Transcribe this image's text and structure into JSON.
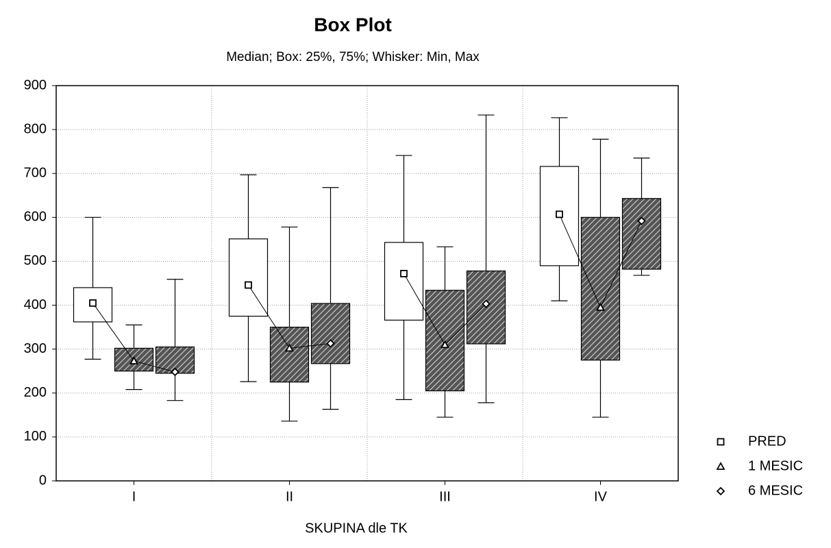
{
  "chart_data": {
    "type": "box",
    "title": "Box Plot",
    "subtitle": "Median; Box: 25%, 75%; Whisker: Min, Max",
    "xlabel": "SKUPINA dle TK",
    "categories": [
      "I",
      "II",
      "III",
      "IV"
    ],
    "ylim": [
      0,
      900
    ],
    "yticks": [
      0,
      100,
      200,
      300,
      400,
      500,
      600,
      700,
      800,
      900
    ],
    "grid": true,
    "legend": "bottom-right",
    "connect_medians": true,
    "series": [
      {
        "name": "PRED",
        "marker": "square",
        "fill": "plain",
        "values": [
          {
            "min": 277,
            "q1": 362,
            "median": 405,
            "q3": 440,
            "max": 600
          },
          {
            "min": 226,
            "q1": 375,
            "median": 446,
            "q3": 551,
            "max": 697
          },
          {
            "min": 185,
            "q1": 366,
            "median": 472,
            "q3": 543,
            "max": 741
          },
          {
            "min": 410,
            "q1": 490,
            "median": 607,
            "q3": 716,
            "max": 827
          }
        ]
      },
      {
        "name": "1 MESIC",
        "marker": "triangle",
        "fill": "hatch",
        "values": [
          {
            "min": 208,
            "q1": 250,
            "median": 273,
            "q3": 302,
            "max": 355
          },
          {
            "min": 136,
            "q1": 225,
            "median": 302,
            "q3": 350,
            "max": 578
          },
          {
            "min": 145,
            "q1": 205,
            "median": 310,
            "q3": 434,
            "max": 533
          },
          {
            "min": 145,
            "q1": 275,
            "median": 395,
            "q3": 600,
            "max": 778
          }
        ]
      },
      {
        "name": "6 MESIC",
        "marker": "diamond",
        "fill": "hatch",
        "values": [
          {
            "min": 183,
            "q1": 245,
            "median": 248,
            "q3": 305,
            "max": 459
          },
          {
            "min": 163,
            "q1": 267,
            "median": 313,
            "q3": 404,
            "max": 668
          },
          {
            "min": 178,
            "q1": 312,
            "median": 403,
            "q3": 478,
            "max": 833
          },
          {
            "min": 468,
            "q1": 482,
            "median": 592,
            "q3": 643,
            "max": 735
          }
        ]
      }
    ]
  }
}
